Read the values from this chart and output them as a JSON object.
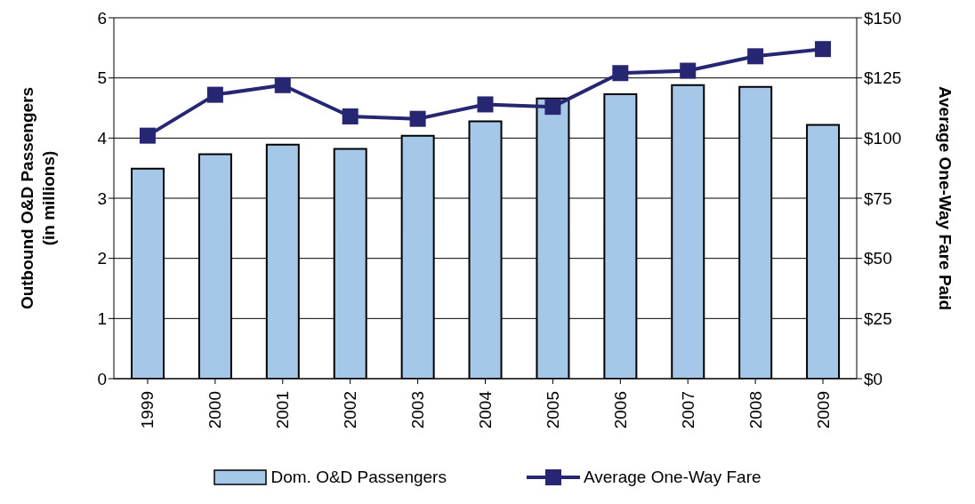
{
  "chart_data": {
    "type": "bar",
    "categories": [
      "1999",
      "2000",
      "2001",
      "2002",
      "2003",
      "2004",
      "2005",
      "2006",
      "2007",
      "2008",
      "2009"
    ],
    "series": [
      {
        "name": "Dom. O&D Passengers",
        "color": "#a6c8e8",
        "values": [
          3.49,
          3.73,
          3.89,
          3.82,
          4.04,
          4.28,
          4.66,
          4.73,
          4.88,
          4.85,
          4.22
        ]
      },
      {
        "name": "Average One-Way Fare",
        "type": "line",
        "axis": "y2",
        "color": "#262673",
        "marker": "square",
        "values": [
          101,
          118,
          122,
          109,
          108,
          114,
          113,
          127,
          128,
          134,
          137
        ]
      }
    ],
    "ylabel": "Outbound O&D Passengers\n(in millions)",
    "y2label": "Average One-Way Fare Paid",
    "ylim": [
      0,
      6
    ],
    "yticks": [
      0,
      1,
      2,
      3,
      4,
      5,
      6
    ],
    "y2lim": [
      0,
      150
    ],
    "y2ticks": [
      {
        "value": 0,
        "label": "$0"
      },
      {
        "value": 25,
        "label": "$25"
      },
      {
        "value": 50,
        "label": "$50"
      },
      {
        "value": 75,
        "label": "$75"
      },
      {
        "value": 100,
        "label": "$100"
      },
      {
        "value": 125,
        "label": "$125"
      },
      {
        "value": 150,
        "label": "$150"
      }
    ],
    "grid": "y",
    "legend": "bottom"
  }
}
